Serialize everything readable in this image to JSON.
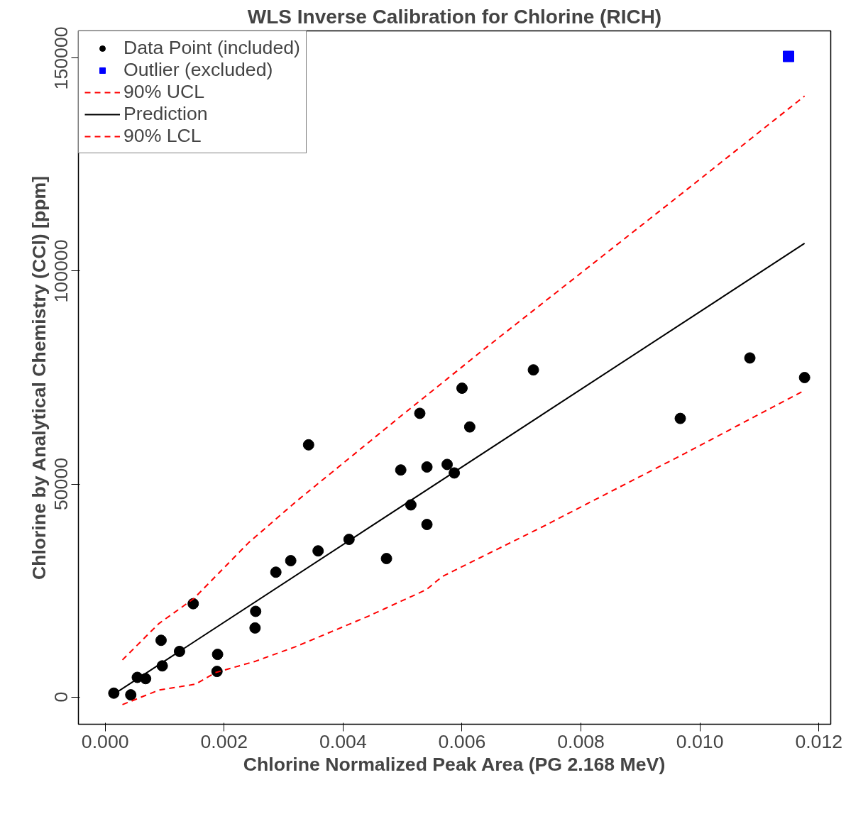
{
  "chart_data": {
    "type": "scatter",
    "title": "WLS Inverse Calibration for Chlorine (RICH)",
    "xlabel": "Chlorine Normalized Peak Area (PG 2.168 MeV)",
    "ylabel": "Chlorine by Analytical Chemistry (CCl) [ppm]",
    "xlim": [
      -0.00045,
      0.0122
    ],
    "ylim": [
      -6400,
      156400
    ],
    "xticks": [
      {
        "value": 0,
        "label": "0.000"
      },
      {
        "value": 0.002,
        "label": "0.002"
      },
      {
        "value": 0.004,
        "label": "0.004"
      },
      {
        "value": 0.006,
        "label": "0.006"
      },
      {
        "value": 0.008,
        "label": "0.008"
      },
      {
        "value": 0.01,
        "label": "0.010"
      },
      {
        "value": 0.012,
        "label": "0.012"
      }
    ],
    "yticks": [
      0,
      50000,
      100000,
      150000
    ],
    "grid": false,
    "legend": "top left",
    "series": [
      {
        "name": "Data Point (included)",
        "marker": "circle",
        "color": "#000000",
        "x": [
          0.000145,
          0.00043,
          0.00054,
          0.00068,
          0.00096,
          0.00094,
          0.00125,
          0.00148,
          0.00188,
          0.00189,
          0.00252,
          0.00253,
          0.00287,
          0.00312,
          0.00342,
          0.00358,
          0.0041,
          0.00473,
          0.00497,
          0.00514,
          0.00529,
          0.00541,
          0.00541,
          0.00575,
          0.00587,
          0.006,
          0.00613,
          0.0072,
          0.00967,
          0.01084,
          0.01176
        ],
        "values": [
          900,
          500,
          4600,
          4300,
          7300,
          13300,
          10700,
          21900,
          6000,
          10000,
          16200,
          20100,
          29300,
          32000,
          59200,
          34300,
          37000,
          32500,
          53300,
          45100,
          66600,
          54000,
          40500,
          54600,
          52600,
          72500,
          63400,
          76800,
          65400,
          79600,
          75000
        ]
      },
      {
        "name": "Outlier (excluded)",
        "marker": "square",
        "color": "#0000ff",
        "x": [
          0.01149
        ],
        "values": [
          150400
        ]
      },
      {
        "name": "90% UCL",
        "type": "line",
        "line_style": "dashed",
        "color": "#ff0000",
        "x": [
          0.00029,
          0.0009,
          0.00149,
          0.00241,
          0.00322,
          0.00495,
          0.00633,
          0.00806,
          0.00975,
          0.01176
        ],
        "values": [
          8700,
          17200,
          23100,
          36200,
          46000,
          65700,
          81200,
          100200,
          118800,
          141100
        ]
      },
      {
        "name": "Prediction",
        "type": "line",
        "line_style": "solid",
        "color": "#000000",
        "x": [
          0.000206,
          0.01176
        ],
        "values": [
          1200,
          106500
        ]
      },
      {
        "name": "90% LCL",
        "type": "line",
        "line_style": "dashed",
        "color": "#ff0000",
        "x": [
          0.00029,
          0.0009,
          0.00152,
          0.00185,
          0.00253,
          0.00322,
          0.00443,
          0.0054,
          0.00567,
          0.00733,
          0.00975,
          0.01176
        ],
        "values": [
          -1800,
          1600,
          3000,
          5700,
          8400,
          11900,
          19000,
          25200,
          28300,
          39800,
          57200,
          72000
        ]
      }
    ]
  }
}
